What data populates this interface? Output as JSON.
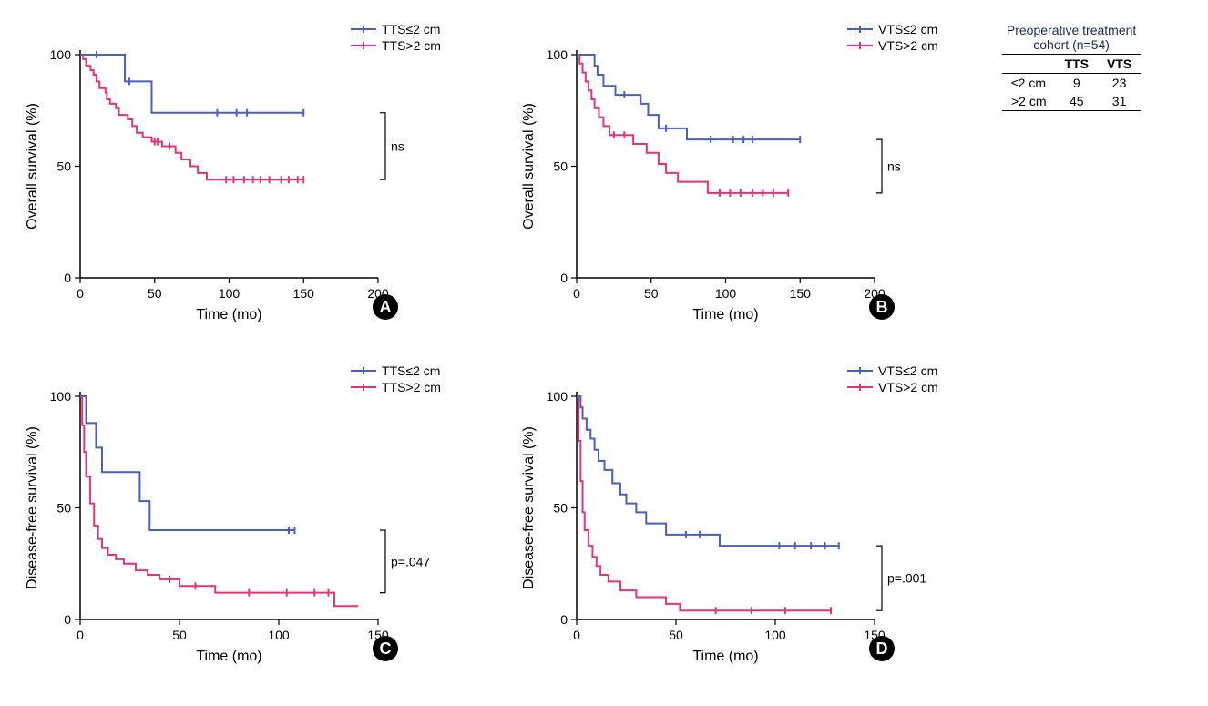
{
  "colors": {
    "series1": "#4a5fc1",
    "series2": "#e4337a",
    "axis": "#000000",
    "background": "#ffffff",
    "table_header": "#1a2a5e"
  },
  "line_width": 2,
  "axis_stroke_width": 1.5,
  "axis_font_size": 14,
  "label_font_size": 16,
  "legend_font_size": 14,
  "table": {
    "title_line1": "Preoperative treatment",
    "title_line2": "cohort (n=54)",
    "columns": [
      "",
      "TTS",
      "VTS"
    ],
    "rows": [
      [
        "≤2 cm",
        "9",
        "23"
      ],
      [
        ">2 cm",
        "45",
        "31"
      ]
    ]
  },
  "panels": {
    "A": {
      "badge": "A",
      "ylabel": "Overall survival (%)",
      "xlabel": "Time (mo)",
      "xlim": [
        0,
        200
      ],
      "xtick_step": 50,
      "ylim": [
        0,
        100
      ],
      "ytick_step": 50,
      "legend": {
        "s1": "TTS≤2 cm",
        "s2": "TTS>2 cm"
      },
      "stat": "ns",
      "bracket_y": [
        44,
        74
      ],
      "series1": {
        "points": [
          [
            0,
            100
          ],
          [
            30,
            88
          ],
          [
            48,
            88
          ],
          [
            48,
            74
          ],
          [
            150,
            74
          ]
        ],
        "censors": [
          [
            11,
            100
          ],
          [
            33,
            88
          ],
          [
            92,
            74
          ],
          [
            105,
            74
          ],
          [
            112,
            74
          ],
          [
            150,
            74
          ]
        ]
      },
      "series2": {
        "points": [
          [
            0,
            100
          ],
          [
            2,
            98
          ],
          [
            4,
            95
          ],
          [
            7,
            93
          ],
          [
            9,
            91
          ],
          [
            11,
            88
          ],
          [
            13,
            85
          ],
          [
            17,
            83
          ],
          [
            18,
            80
          ],
          [
            20,
            78
          ],
          [
            24,
            76
          ],
          [
            26,
            73
          ],
          [
            32,
            71
          ],
          [
            35,
            68
          ],
          [
            38,
            65
          ],
          [
            42,
            63
          ],
          [
            48,
            61
          ],
          [
            55,
            59
          ],
          [
            64,
            56
          ],
          [
            68,
            53
          ],
          [
            74,
            50
          ],
          [
            79,
            47
          ],
          [
            85,
            44
          ],
          [
            150,
            44
          ]
        ],
        "censors": [
          [
            50,
            61
          ],
          [
            52,
            61
          ],
          [
            60,
            59
          ],
          [
            98,
            44
          ],
          [
            103,
            44
          ],
          [
            110,
            44
          ],
          [
            116,
            44
          ],
          [
            121,
            44
          ],
          [
            127,
            44
          ],
          [
            135,
            44
          ],
          [
            140,
            44
          ],
          [
            146,
            44
          ],
          [
            150,
            44
          ]
        ]
      }
    },
    "B": {
      "badge": "B",
      "ylabel": "Overall survival (%)",
      "xlabel": "Time (mo)",
      "xlim": [
        0,
        200
      ],
      "xtick_step": 50,
      "ylim": [
        0,
        100
      ],
      "ytick_step": 50,
      "legend": {
        "s1": "VTS≤2 cm",
        "s2": "VTS>2 cm"
      },
      "stat": "ns",
      "bracket_y": [
        38,
        62
      ],
      "series1": {
        "points": [
          [
            0,
            100
          ],
          [
            12,
            95
          ],
          [
            14,
            91
          ],
          [
            18,
            86
          ],
          [
            26,
            82
          ],
          [
            43,
            78
          ],
          [
            48,
            73
          ],
          [
            55,
            67
          ],
          [
            74,
            67
          ],
          [
            74,
            62
          ],
          [
            150,
            62
          ]
        ],
        "censors": [
          [
            32,
            82
          ],
          [
            60,
            67
          ],
          [
            90,
            62
          ],
          [
            105,
            62
          ],
          [
            112,
            62
          ],
          [
            118,
            62
          ],
          [
            150,
            62
          ]
        ]
      },
      "series2": {
        "points": [
          [
            0,
            100
          ],
          [
            2,
            96
          ],
          [
            4,
            92
          ],
          [
            6,
            88
          ],
          [
            8,
            84
          ],
          [
            10,
            80
          ],
          [
            12,
            76
          ],
          [
            15,
            72
          ],
          [
            18,
            68
          ],
          [
            22,
            64
          ],
          [
            38,
            64
          ],
          [
            38,
            60
          ],
          [
            47,
            56
          ],
          [
            55,
            51
          ],
          [
            60,
            47
          ],
          [
            68,
            43
          ],
          [
            88,
            43
          ],
          [
            88,
            38
          ],
          [
            142,
            38
          ]
        ],
        "censors": [
          [
            25,
            64
          ],
          [
            32,
            64
          ],
          [
            96,
            38
          ],
          [
            103,
            38
          ],
          [
            110,
            38
          ],
          [
            118,
            38
          ],
          [
            125,
            38
          ],
          [
            132,
            38
          ],
          [
            142,
            38
          ]
        ]
      }
    },
    "C": {
      "badge": "C",
      "ylabel": "Disease-free survival (%)",
      "xlabel": "Time (mo)",
      "xlim": [
        0,
        150
      ],
      "xtick_step": 50,
      "ylim": [
        0,
        100
      ],
      "ytick_step": 50,
      "legend": {
        "s1": "TTS≤2 cm",
        "s2": "TTS>2 cm"
      },
      "stat": "p=.047",
      "bracket_y": [
        12,
        40
      ],
      "series1": {
        "points": [
          [
            0,
            100
          ],
          [
            3,
            88
          ],
          [
            8,
            77
          ],
          [
            11,
            66
          ],
          [
            30,
            66
          ],
          [
            30,
            53
          ],
          [
            35,
            40
          ],
          [
            108,
            40
          ]
        ],
        "censors": [
          [
            105,
            40
          ],
          [
            108,
            40
          ]
        ]
      },
      "series2": {
        "points": [
          [
            0,
            100
          ],
          [
            1,
            87
          ],
          [
            2,
            75
          ],
          [
            3,
            64
          ],
          [
            5,
            52
          ],
          [
            7,
            42
          ],
          [
            9,
            36
          ],
          [
            11,
            32
          ],
          [
            14,
            29
          ],
          [
            18,
            27
          ],
          [
            22,
            25
          ],
          [
            28,
            22
          ],
          [
            34,
            20
          ],
          [
            40,
            18
          ],
          [
            50,
            15
          ],
          [
            68,
            15
          ],
          [
            68,
            12
          ],
          [
            125,
            12
          ],
          [
            128,
            12
          ],
          [
            128,
            6
          ],
          [
            140,
            6
          ]
        ],
        "censors": [
          [
            45,
            18
          ],
          [
            58,
            15
          ],
          [
            85,
            12
          ],
          [
            104,
            12
          ],
          [
            118,
            12
          ],
          [
            125,
            12
          ]
        ]
      }
    },
    "D": {
      "badge": "D",
      "ylabel": "Disease-free survival (%)",
      "xlabel": "Time (mo)",
      "xlim": [
        0,
        150
      ],
      "xtick_step": 50,
      "ylim": [
        0,
        100
      ],
      "ytick_step": 50,
      "legend": {
        "s1": "VTS≤2 cm",
        "s2": "VTS>2 cm"
      },
      "stat": "p=.001",
      "bracket_y": [
        4,
        33
      ],
      "series1": {
        "points": [
          [
            0,
            100
          ],
          [
            2,
            95
          ],
          [
            3,
            90
          ],
          [
            5,
            85
          ],
          [
            7,
            81
          ],
          [
            9,
            76
          ],
          [
            11,
            71
          ],
          [
            14,
            67
          ],
          [
            18,
            61
          ],
          [
            22,
            56
          ],
          [
            25,
            52
          ],
          [
            30,
            52
          ],
          [
            30,
            48
          ],
          [
            35,
            43
          ],
          [
            45,
            38
          ],
          [
            48,
            38
          ],
          [
            70,
            38
          ],
          [
            72,
            33
          ],
          [
            132,
            33
          ]
        ],
        "censors": [
          [
            55,
            38
          ],
          [
            62,
            38
          ],
          [
            102,
            33
          ],
          [
            110,
            33
          ],
          [
            118,
            33
          ],
          [
            125,
            33
          ],
          [
            132,
            33
          ]
        ]
      },
      "series2": {
        "points": [
          [
            0,
            100
          ],
          [
            1,
            80
          ],
          [
            2,
            62
          ],
          [
            3,
            48
          ],
          [
            4,
            40
          ],
          [
            6,
            33
          ],
          [
            8,
            28
          ],
          [
            10,
            24
          ],
          [
            12,
            20
          ],
          [
            16,
            17
          ],
          [
            22,
            13
          ],
          [
            30,
            10
          ],
          [
            42,
            10
          ],
          [
            45,
            7
          ],
          [
            52,
            7
          ],
          [
            52,
            4
          ],
          [
            128,
            4
          ]
        ],
        "censors": [
          [
            70,
            4
          ],
          [
            88,
            4
          ],
          [
            105,
            4
          ],
          [
            128,
            4
          ]
        ]
      }
    }
  }
}
